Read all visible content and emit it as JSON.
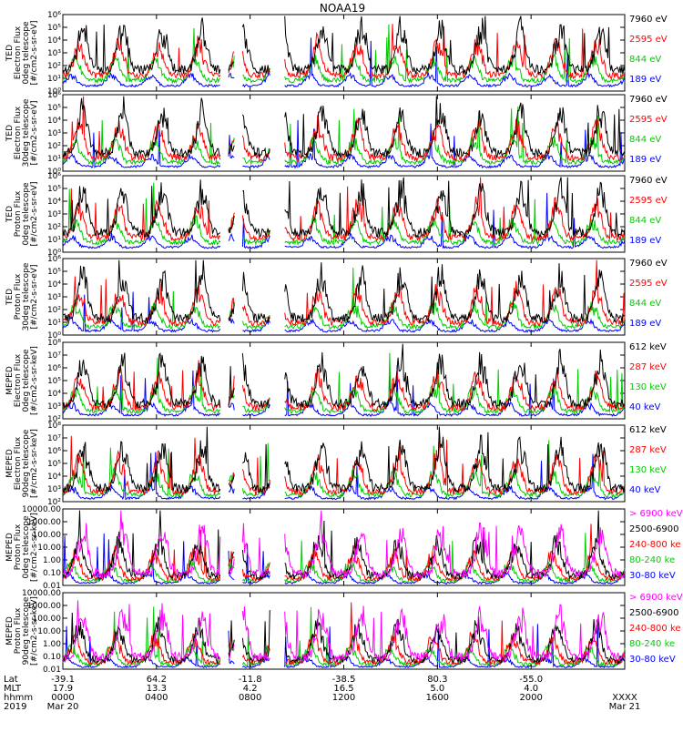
{
  "chart_data": {
    "type": "line",
    "title": "NOAA19",
    "panels": [
      {
        "ylabel": [
          "TED",
          "Electron Flux",
          "0deg telescope",
          "[#/cm2-s-sr-eV]"
        ],
        "ytick_labels": [
          "10⁰",
          "10¹",
          "10²",
          "10³",
          "10⁴",
          "10⁵",
          "10⁶"
        ],
        "ylim": [
          1,
          1000000
        ],
        "scale": "log",
        "legend": [
          {
            "label": "7960 eV",
            "color": "#000000"
          },
          {
            "label": "2595 eV",
            "color": "#ff0000"
          },
          {
            "label": "844 eV",
            "color": "#00cc00"
          },
          {
            "label": "189 eV",
            "color": "#0000ff"
          }
        ]
      },
      {
        "ylabel": [
          "TED",
          "Electron Flux",
          "30deg telescope",
          "[#/cm2-s-sr-eV]"
        ],
        "ytick_labels": [
          "10⁰",
          "10¹",
          "10²",
          "10³",
          "10⁴",
          "10⁵",
          "10⁶"
        ],
        "ylim": [
          1,
          1000000
        ],
        "scale": "log",
        "legend": [
          {
            "label": "7960 eV",
            "color": "#000000"
          },
          {
            "label": "2595 eV",
            "color": "#ff0000"
          },
          {
            "label": "844 eV",
            "color": "#00cc00"
          },
          {
            "label": "189 eV",
            "color": "#0000ff"
          }
        ]
      },
      {
        "ylabel": [
          "TED",
          "Proton Flux",
          "0deg telescope",
          "[#/cm2-s-sr-eV]"
        ],
        "ytick_labels": [
          "10⁰",
          "10¹",
          "10²",
          "10³",
          "10⁴",
          "10⁵",
          "10⁶"
        ],
        "ylim": [
          1,
          1000000
        ],
        "scale": "log",
        "legend": [
          {
            "label": "7960 eV",
            "color": "#000000"
          },
          {
            "label": "2595 eV",
            "color": "#ff0000"
          },
          {
            "label": "844 eV",
            "color": "#00cc00"
          },
          {
            "label": "189 eV",
            "color": "#0000ff"
          }
        ]
      },
      {
        "ylabel": [
          "TED",
          "Proton Flux",
          "30deg telescope",
          "[#/cm2-s-sr-eV]"
        ],
        "ytick_labels": [
          "10⁰",
          "10¹",
          "10²",
          "10³",
          "10⁴",
          "10⁵",
          "10⁶"
        ],
        "ylim": [
          1,
          1000000
        ],
        "scale": "log",
        "legend": [
          {
            "label": "7960 eV",
            "color": "#000000"
          },
          {
            "label": "2595 eV",
            "color": "#ff0000"
          },
          {
            "label": "844 eV",
            "color": "#00cc00"
          },
          {
            "label": "189 eV",
            "color": "#0000ff"
          }
        ]
      },
      {
        "ylabel": [
          "MEPED",
          "Electron Flux",
          "0deg telescope",
          "[#/cm2-s-sr-keV]"
        ],
        "ytick_labels": [
          "10²",
          "10³",
          "10⁴",
          "10⁵",
          "10⁶",
          "10⁷",
          "10⁸"
        ],
        "ylim": [
          100,
          100000000
        ],
        "scale": "log",
        "legend": [
          {
            "label": "612 keV",
            "color": "#000000"
          },
          {
            "label": "287 keV",
            "color": "#ff0000"
          },
          {
            "label": "130 keV",
            "color": "#00cc00"
          },
          {
            "label": "40 keV",
            "color": "#0000ff"
          }
        ]
      },
      {
        "ylabel": [
          "MEPED",
          "Electron Flux",
          "90deg telescope",
          "[#/cm2-s-sr-keV]"
        ],
        "ytick_labels": [
          "10²",
          "10³",
          "10⁴",
          "10⁵",
          "10⁶",
          "10⁷",
          "10⁸"
        ],
        "ylim": [
          100,
          100000000
        ],
        "scale": "log",
        "legend": [
          {
            "label": "612 keV",
            "color": "#000000"
          },
          {
            "label": "287 keV",
            "color": "#ff0000"
          },
          {
            "label": "130 keV",
            "color": "#00cc00"
          },
          {
            "label": "40 keV",
            "color": "#0000ff"
          }
        ]
      },
      {
        "ylabel": [
          "MEPED",
          "Proton Flux",
          "0deg telescope",
          "[#/cm2-s-sr-keV]"
        ],
        "ytick_labels": [
          "0.01",
          "0.10",
          "1.00",
          "10.00",
          "100.00",
          "1000.00",
          "10000.00"
        ],
        "ylim": [
          0.01,
          10000
        ],
        "scale": "log",
        "legend": [
          {
            "label": "> 6900 keV",
            "color": "#ff00ff"
          },
          {
            "label": "2500-6900",
            "color": "#000000"
          },
          {
            "label": "240-800 ke",
            "color": "#ff0000"
          },
          {
            "label": "80-240 ke",
            "color": "#00cc00"
          },
          {
            "label": "30-80 keV",
            "color": "#0000ff"
          }
        ]
      },
      {
        "ylabel": [
          "MEPED",
          "Proton Flux",
          "90deg telescope",
          "[#/cm2-s-sr-keV]"
        ],
        "ytick_labels": [
          "0.01",
          "0.10",
          "1.00",
          "10.00",
          "100.00",
          "1000.00",
          "10000.00"
        ],
        "ylim": [
          0.01,
          10000
        ],
        "scale": "log",
        "legend": [
          {
            "label": "> 6900 keV",
            "color": "#ff00ff"
          },
          {
            "label": "2500-6900",
            "color": "#000000"
          },
          {
            "label": "240-800 ke",
            "color": "#ff0000"
          },
          {
            "label": "80-240 ke",
            "color": "#00cc00"
          },
          {
            "label": "30-80 keV",
            "color": "#0000ff"
          }
        ]
      }
    ],
    "x_axis": {
      "row_labels": [
        "Lat",
        "MLT",
        "hhmm",
        "2019"
      ],
      "xlim_hours": [
        0,
        24
      ],
      "ticks": [
        {
          "hour": 0,
          "lat": "-39.1",
          "mlt": "17.9",
          "hhmm": "0000",
          "date": "Mar 20"
        },
        {
          "hour": 4,
          "lat": "64.2",
          "mlt": "13.3",
          "hhmm": "0400",
          "date": ""
        },
        {
          "hour": 8,
          "lat": "-11.8",
          "mlt": "4.2",
          "hhmm": "0800",
          "date": ""
        },
        {
          "hour": 12,
          "lat": "-38.5",
          "mlt": "16.5",
          "hhmm": "1200",
          "date": ""
        },
        {
          "hour": 16,
          "lat": "80.3",
          "mlt": "5.0",
          "hhmm": "1600",
          "date": ""
        },
        {
          "hour": 20,
          "lat": "-55.0",
          "mlt": "4.0",
          "hhmm": "2000",
          "date": ""
        },
        {
          "hour": 24,
          "lat": "",
          "mlt": "",
          "hhmm": "XXXX",
          "date": "Mar 21"
        }
      ]
    },
    "gaps_hours": [
      [
        6.75,
        7.05
      ],
      [
        7.35,
        7.65
      ],
      [
        8.85,
        9.45
      ]
    ],
    "grid": false
  }
}
